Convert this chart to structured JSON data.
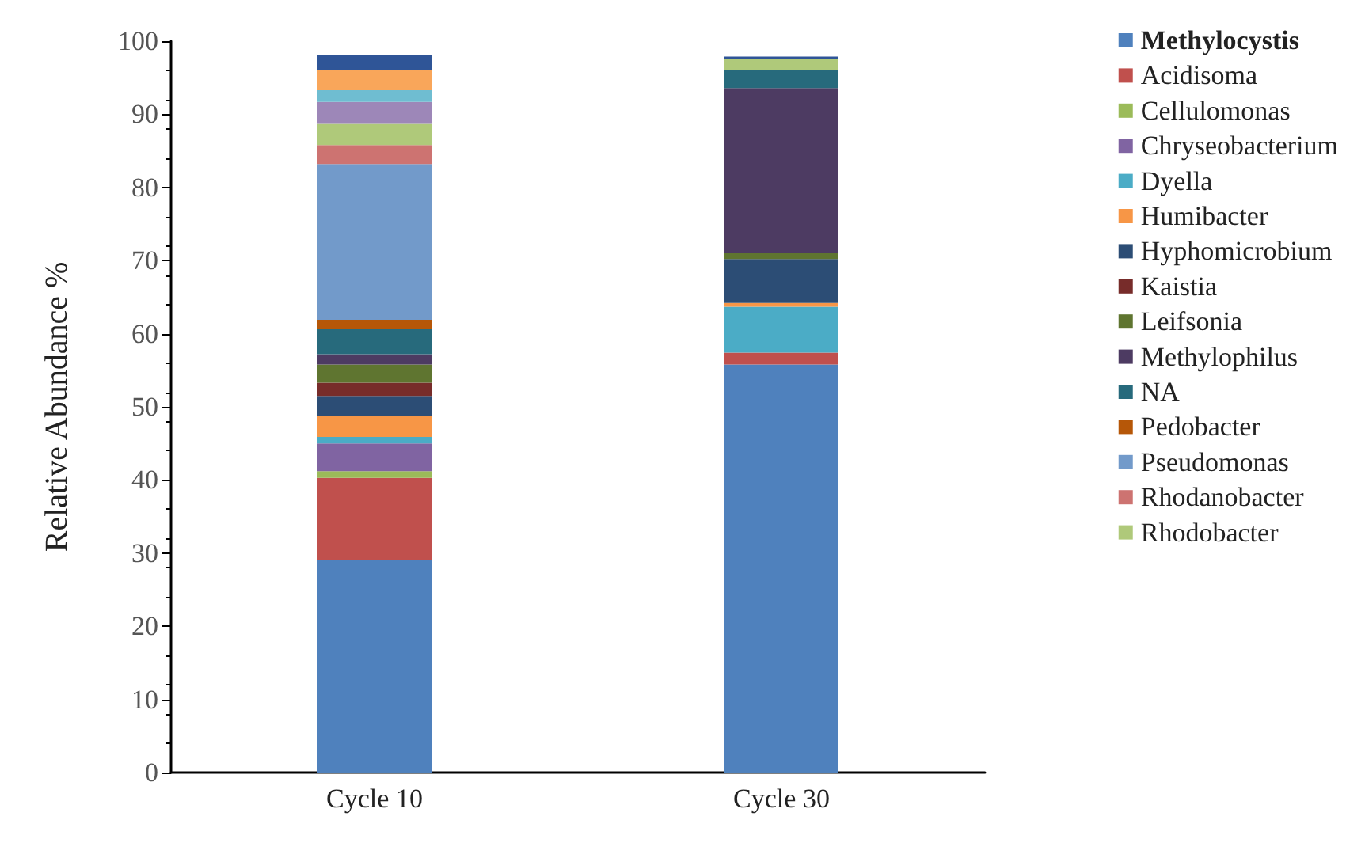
{
  "chart_data": {
    "type": "bar",
    "stacked": true,
    "ylabel": "Relative Abundance %",
    "categories": [
      "Cycle 10",
      "Cycle 30"
    ],
    "ylim": [
      0,
      100
    ],
    "yticks": [
      0,
      10,
      20,
      30,
      40,
      50,
      60,
      70,
      80,
      90,
      100
    ],
    "grid": false,
    "legend": "right",
    "series": [
      {
        "name": "Methylocystis",
        "color": "#4f81bd",
        "values": [
          29.0,
          55.8
        ]
      },
      {
        "name": "Acidisoma",
        "color": "#c0504d",
        "values": [
          11.3,
          1.6
        ]
      },
      {
        "name": "Cellulomonas",
        "color": "#9bbb59",
        "values": [
          0.9,
          0
        ]
      },
      {
        "name": "Chryseobacterium",
        "color": "#8064a2",
        "values": [
          3.8,
          0
        ]
      },
      {
        "name": "Dyella",
        "color": "#4bacc6",
        "values": [
          0.9,
          6.3
        ]
      },
      {
        "name": "Humibacter",
        "color": "#f79646",
        "values": [
          2.8,
          0.5
        ]
      },
      {
        "name": "Hyphomicrobium",
        "color": "#2c4d75",
        "values": [
          2.8,
          6.0
        ]
      },
      {
        "name": "Kaistia",
        "color": "#772c2a",
        "values": [
          1.8,
          0
        ]
      },
      {
        "name": "Leifsonia",
        "color": "#5f7530",
        "values": [
          2.5,
          0.8
        ]
      },
      {
        "name": "Methylophilus",
        "color": "#4d3b62",
        "values": [
          1.4,
          22.6
        ]
      },
      {
        "name": "NA",
        "color": "#276a7c",
        "values": [
          3.4,
          2.4
        ]
      },
      {
        "name": "Pedobacter",
        "color": "#b65708",
        "values": [
          1.3,
          0
        ]
      },
      {
        "name": "Pseudomonas",
        "color": "#729aca",
        "values": [
          21.3,
          0
        ]
      },
      {
        "name": "Rhodanobacter",
        "color": "#cd7371",
        "values": [
          2.6,
          0
        ]
      },
      {
        "name": "Rhodobacter",
        "color": "#afc97a",
        "values": [
          2.9,
          1.5
        ]
      },
      {
        "color": "#9d87b8",
        "values": [
          3.0,
          0
        ]
      },
      {
        "color": "#6fbdd1",
        "values": [
          1.6,
          0
        ]
      },
      {
        "color": "#f9a65a",
        "values": [
          2.8,
          0
        ]
      },
      {
        "color": "#2f5597",
        "values": [
          2.0,
          0.4
        ]
      }
    ]
  }
}
